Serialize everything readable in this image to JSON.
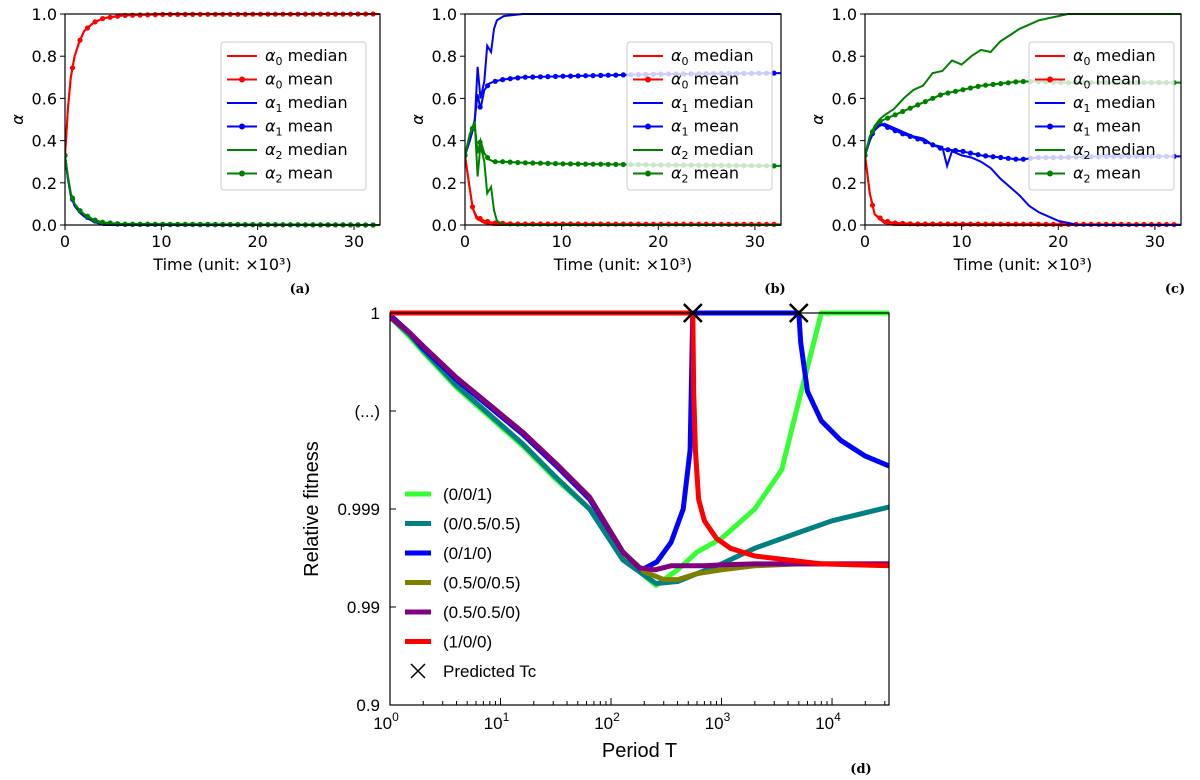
{
  "chart_data": [
    {
      "type": "line",
      "panel_label": "(a)",
      "xlabel": "Time (unit: ×10³)",
      "ylabel": "α",
      "xlim": [
        0,
        32.7
      ],
      "ylim": [
        0.0,
        1.0
      ],
      "xticks": [
        "0",
        "10",
        "20",
        "30"
      ],
      "yticks": [
        "0.0",
        "0.2",
        "0.4",
        "0.6",
        "0.8",
        "1.0"
      ],
      "legend_placement": "right",
      "series": [
        {
          "name": "α0 median",
          "color": "#ff0000",
          "marker": "none",
          "x": [
            0,
            0.3,
            0.6,
            1,
            1.5,
            2,
            3,
            4,
            6,
            10,
            32.7
          ],
          "y": [
            0.33,
            0.55,
            0.7,
            0.8,
            0.87,
            0.92,
            0.96,
            0.98,
            0.995,
            1.0,
            1.0
          ]
        },
        {
          "name": "α0 mean",
          "color": "#ff0000",
          "marker": "dot",
          "x": [
            0,
            0.3,
            0.6,
            1,
            1.5,
            2,
            3,
            4,
            6,
            10,
            32.7
          ],
          "y": [
            0.33,
            0.55,
            0.7,
            0.8,
            0.87,
            0.92,
            0.96,
            0.98,
            0.993,
            0.998,
            1.0
          ]
        },
        {
          "name": "α1 median",
          "color": "#0000ff",
          "marker": "none",
          "x": [
            0,
            0.3,
            0.6,
            1,
            1.5,
            2,
            3,
            4,
            32.7
          ],
          "y": [
            0.33,
            0.22,
            0.14,
            0.09,
            0.06,
            0.04,
            0.015,
            0.0,
            0.0
          ]
        },
        {
          "name": "α1 mean",
          "color": "#0000ff",
          "marker": "dot",
          "x": [
            0,
            0.3,
            0.6,
            1,
            1.5,
            2,
            3,
            4,
            6,
            32.7
          ],
          "y": [
            0.33,
            0.22,
            0.14,
            0.1,
            0.07,
            0.045,
            0.02,
            0.01,
            0.003,
            0.0
          ]
        },
        {
          "name": "α2 median",
          "color": "#008000",
          "marker": "none",
          "x": [
            0,
            0.3,
            0.6,
            1,
            1.5,
            2,
            3,
            4,
            32.7
          ],
          "y": [
            0.33,
            0.23,
            0.15,
            0.1,
            0.07,
            0.05,
            0.02,
            0.005,
            0.0
          ]
        },
        {
          "name": "α2 mean",
          "color": "#008000",
          "marker": "dot",
          "x": [
            0,
            0.3,
            0.6,
            1,
            1.5,
            2,
            3,
            4,
            6,
            32.7
          ],
          "y": [
            0.33,
            0.23,
            0.15,
            0.1,
            0.07,
            0.05,
            0.025,
            0.012,
            0.004,
            0.0
          ]
        }
      ]
    },
    {
      "type": "line",
      "panel_label": "(b)",
      "xlabel": "Time (unit: ×10³)",
      "ylabel": "α",
      "xlim": [
        0,
        32.7
      ],
      "ylim": [
        0.0,
        1.0
      ],
      "xticks": [
        "0",
        "10",
        "20",
        "30"
      ],
      "yticks": [
        "0.0",
        "0.2",
        "0.4",
        "0.6",
        "0.8",
        "1.0"
      ],
      "legend_placement": "right",
      "series": [
        {
          "name": "α0 median",
          "color": "#ff0000",
          "marker": "none",
          "x": [
            0,
            0.4,
            0.8,
            1.2,
            2,
            3,
            32.7
          ],
          "y": [
            0.33,
            0.2,
            0.08,
            0.03,
            0.01,
            0.0,
            0.0
          ]
        },
        {
          "name": "α0 mean",
          "color": "#ff0000",
          "marker": "dot",
          "x": [
            0,
            0.4,
            0.8,
            1.2,
            2,
            3,
            5,
            32.7
          ],
          "y": [
            0.33,
            0.2,
            0.08,
            0.04,
            0.02,
            0.01,
            0.005,
            0.003
          ]
        },
        {
          "name": "α1 median",
          "color": "#0000ff",
          "marker": "none",
          "x": [
            0,
            0.5,
            1.0,
            1.3,
            1.6,
            2.0,
            2.3,
            2.7,
            3.0,
            3.3,
            4,
            6,
            32.7
          ],
          "y": [
            0.33,
            0.4,
            0.48,
            0.75,
            0.6,
            0.68,
            0.85,
            0.82,
            0.93,
            0.97,
            0.99,
            1.0,
            1.0
          ]
        },
        {
          "name": "α1 mean",
          "color": "#0000ff",
          "marker": "dot",
          "x": [
            0,
            0.5,
            1.0,
            1.3,
            1.6,
            2.0,
            2.5,
            3.0,
            4,
            6,
            10,
            15,
            20,
            32.7
          ],
          "y": [
            0.33,
            0.4,
            0.5,
            0.62,
            0.55,
            0.64,
            0.67,
            0.68,
            0.69,
            0.7,
            0.705,
            0.71,
            0.715,
            0.72
          ]
        },
        {
          "name": "α2 median",
          "color": "#008000",
          "marker": "none",
          "x": [
            0,
            0.5,
            1.0,
            1.3,
            1.6,
            2.0,
            2.3,
            2.7,
            3.0,
            3.3,
            4,
            32.7
          ],
          "y": [
            0.33,
            0.43,
            0.49,
            0.23,
            0.38,
            0.3,
            0.15,
            0.18,
            0.07,
            0.02,
            0.0,
            0.0
          ]
        },
        {
          "name": "α2 mean",
          "color": "#008000",
          "marker": "dot",
          "x": [
            0,
            0.5,
            1.0,
            1.3,
            1.6,
            2.0,
            2.5,
            3.0,
            4,
            6,
            10,
            20,
            32.7
          ],
          "y": [
            0.33,
            0.43,
            0.48,
            0.34,
            0.4,
            0.34,
            0.31,
            0.3,
            0.3,
            0.295,
            0.29,
            0.285,
            0.28
          ]
        }
      ]
    },
    {
      "type": "line",
      "panel_label": "(c)",
      "xlabel": "Time (unit: ×10³)",
      "ylabel": "α",
      "xlim": [
        0,
        32.7
      ],
      "ylim": [
        0.0,
        1.0
      ],
      "xticks": [
        "0",
        "10",
        "20",
        "30"
      ],
      "yticks": [
        "0.0",
        "0.2",
        "0.4",
        "0.6",
        "0.8",
        "1.0"
      ],
      "legend_placement": "right",
      "series": [
        {
          "name": "α0 median",
          "color": "#ff0000",
          "marker": "none",
          "x": [
            0,
            0.5,
            1,
            2,
            3,
            32.7
          ],
          "y": [
            0.33,
            0.15,
            0.05,
            0.01,
            0.0,
            0.0
          ]
        },
        {
          "name": "α0 mean",
          "color": "#ff0000",
          "marker": "dot",
          "x": [
            0,
            0.5,
            1,
            2,
            3,
            5,
            32.7
          ],
          "y": [
            0.33,
            0.15,
            0.05,
            0.02,
            0.01,
            0.005,
            0.002
          ]
        },
        {
          "name": "α1 median",
          "color": "#0000ff",
          "marker": "none",
          "x": [
            0,
            0.5,
            1,
            1.5,
            2,
            3,
            4,
            5,
            6,
            7,
            8,
            8.5,
            9,
            10,
            11,
            12,
            13,
            14,
            15,
            16,
            17,
            18,
            19,
            20,
            21,
            22,
            32.7
          ],
          "y": [
            0.33,
            0.4,
            0.45,
            0.47,
            0.48,
            0.46,
            0.44,
            0.42,
            0.41,
            0.38,
            0.37,
            0.28,
            0.35,
            0.33,
            0.32,
            0.3,
            0.27,
            0.22,
            0.18,
            0.14,
            0.09,
            0.06,
            0.04,
            0.02,
            0.01,
            0.0,
            0.0
          ]
        },
        {
          "name": "α1 mean",
          "color": "#0000ff",
          "marker": "dot",
          "x": [
            0,
            0.5,
            1,
            1.5,
            2,
            3,
            4,
            6,
            8,
            10,
            12,
            14,
            16,
            18,
            20,
            25,
            32.7
          ],
          "y": [
            0.33,
            0.4,
            0.46,
            0.48,
            0.47,
            0.45,
            0.43,
            0.4,
            0.36,
            0.35,
            0.33,
            0.32,
            0.31,
            0.32,
            0.32,
            0.325,
            0.325
          ]
        },
        {
          "name": "α2 median",
          "color": "#008000",
          "marker": "none",
          "x": [
            0,
            0.5,
            1,
            1.5,
            2,
            3,
            4,
            5,
            6,
            7,
            8,
            9,
            10,
            11,
            12,
            13,
            14,
            15,
            16,
            17,
            18,
            19,
            20,
            21,
            22,
            32.7
          ],
          "y": [
            0.33,
            0.42,
            0.47,
            0.5,
            0.52,
            0.55,
            0.6,
            0.64,
            0.66,
            0.72,
            0.73,
            0.78,
            0.76,
            0.8,
            0.83,
            0.82,
            0.87,
            0.9,
            0.93,
            0.95,
            0.97,
            0.98,
            0.99,
            1.0,
            1.0,
            1.0
          ]
        },
        {
          "name": "α2 mean",
          "color": "#008000",
          "marker": "dot",
          "x": [
            0,
            0.5,
            1,
            1.5,
            2,
            3,
            4,
            6,
            8,
            10,
            12,
            14,
            16,
            18,
            20,
            25,
            32.7
          ],
          "y": [
            0.33,
            0.42,
            0.46,
            0.49,
            0.5,
            0.52,
            0.54,
            0.58,
            0.62,
            0.64,
            0.66,
            0.67,
            0.68,
            0.68,
            0.675,
            0.675,
            0.675
          ]
        }
      ]
    },
    {
      "type": "line",
      "panel_label": "(d)",
      "xlabel": "Period T",
      "ylabel": "Relative fitness",
      "x_scale": "log",
      "xlim": [
        1,
        32768
      ],
      "xticks": [
        "10^0",
        "10^1",
        "10^2",
        "10^3",
        "10^4"
      ],
      "yticks": [
        "0.9",
        "0.99",
        "0.999",
        "(...)",
        "1"
      ],
      "legend_placement": "lower-left",
      "markers": [
        {
          "name": "Predicted Tc",
          "x": [
            550,
            5000
          ],
          "y": [
            "1",
            "1"
          ]
        }
      ],
      "series": [
        {
          "name": "(0/0/1)",
          "color": "#33ff33",
          "x": [
            1,
            1.5,
            2,
            4,
            8,
            16,
            32,
            64,
            128,
            256,
            400,
            600,
            1000,
            2000,
            3500,
            5000,
            8000,
            16000,
            32768
          ],
          "y": [
            0.98,
            0.88,
            0.8,
            0.62,
            0.47,
            0.32,
            0.15,
            0.0,
            -0.25,
            -0.39,
            -0.31,
            -0.22,
            -0.15,
            0.0,
            0.2,
            0.55,
            1.0,
            1.0,
            1.0
          ]
        },
        {
          "name": "(0/0.5/0.5)",
          "color": "#008080",
          "x": [
            1,
            1.5,
            2,
            4,
            8,
            16,
            32,
            64,
            128,
            256,
            400,
            600,
            1000,
            2000,
            5000,
            10000,
            32768
          ],
          "y": [
            0.98,
            0.89,
            0.81,
            0.63,
            0.48,
            0.33,
            0.16,
            0.0,
            -0.26,
            -0.38,
            -0.37,
            -0.33,
            -0.28,
            -0.2,
            -0.12,
            -0.06,
            0.01
          ]
        },
        {
          "name": "(0/1/0)",
          "color": "#0000ff",
          "x": [
            1,
            1.5,
            2,
            4,
            8,
            16,
            32,
            64,
            128,
            190,
            260,
            350,
            450,
            520,
            550,
            600,
            1000,
            2000,
            4000,
            5000,
            5200,
            6000,
            8000,
            12000,
            20000,
            32768
          ],
          "y": [
            0.99,
            0.9,
            0.82,
            0.66,
            0.52,
            0.38,
            0.22,
            0.05,
            -0.22,
            -0.31,
            -0.27,
            -0.17,
            0.0,
            0.3,
            1.0,
            1.0,
            1.0,
            1.0,
            1.0,
            1.0,
            0.85,
            0.6,
            0.45,
            0.35,
            0.27,
            0.22
          ]
        },
        {
          "name": "(0.5/0/0.5)",
          "color": "#808000",
          "x": [
            1,
            1.5,
            2,
            4,
            8,
            16,
            32,
            64,
            128,
            200,
            300,
            400,
            600,
            1000,
            2000,
            5000,
            32768
          ],
          "y": [
            0.98,
            0.9,
            0.83,
            0.67,
            0.53,
            0.39,
            0.23,
            0.06,
            -0.22,
            -0.32,
            -0.36,
            -0.36,
            -0.33,
            -0.31,
            -0.29,
            -0.28,
            -0.28
          ]
        },
        {
          "name": "(0.5/0.5/0)",
          "color": "#800080",
          "x": [
            1,
            1.5,
            2,
            4,
            8,
            16,
            32,
            64,
            128,
            180,
            250,
            350,
            500,
            700,
            1000,
            2000,
            5000,
            32768
          ],
          "y": [
            0.98,
            0.9,
            0.83,
            0.67,
            0.53,
            0.39,
            0.23,
            0.06,
            -0.22,
            -0.3,
            -0.31,
            -0.29,
            -0.29,
            -0.29,
            -0.285,
            -0.28,
            -0.28,
            -0.28
          ]
        },
        {
          "name": "(1/0/0)",
          "color": "#ff0000",
          "x": [
            1,
            400,
            500,
            550,
            560,
            580,
            620,
            700,
            900,
            1200,
            2000,
            4000,
            8000,
            32768
          ],
          "y": [
            1.0,
            1.0,
            1.0,
            1.0,
            0.6,
            0.3,
            0.05,
            -0.06,
            -0.15,
            -0.2,
            -0.24,
            -0.26,
            -0.28,
            -0.29
          ]
        }
      ]
    }
  ]
}
